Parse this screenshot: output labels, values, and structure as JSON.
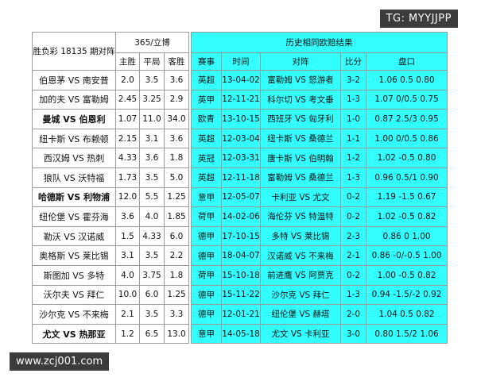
{
  "watermark_top": "TG: MYYJJPP",
  "watermark_bottom": "www.zcj001.com",
  "table": {
    "left_header": "胜负彩 18135 期对阵",
    "odds_header": "365/立博",
    "odds_columns": [
      "主胜",
      "平局",
      "客胜"
    ],
    "history_header": "历史相同欧赔结果",
    "history_columns": [
      "赛事",
      "时间",
      "对阵",
      "比分",
      "盘口"
    ],
    "rows": [
      [
        "伯恩茅 VS 南安普",
        "2.0",
        "3.5",
        "3.6",
        "英超",
        "13-04-02",
        "富勒姆 VS 怒游者",
        "3-2",
        "1.06 0.5 0.80"
      ],
      [
        "加的夫 VS 富勒姆",
        "2.45",
        "3.25",
        "2.9",
        "英甲",
        "12-11-21",
        "科尔切 VS 考文垂",
        "1-3",
        "1.07 0/0.5 0.75"
      ],
      [
        "曼城 VS 伯恩利",
        "1.07",
        "11.0",
        "34.0",
        "欧青",
        "13-10-15",
        "西班牙 VS 匈牙利",
        "1-0",
        "0.87 2.5/3 0.95"
      ],
      [
        "纽卡斯 VS 布赖顿",
        "2.15",
        "3.1",
        "3.6",
        "英超",
        "12-03-04",
        "纽卡斯 VS 桑德兰",
        "1-1",
        "1.00 0/0.5 0.86"
      ],
      [
        "西汉姆 VS 热刺",
        "4.33",
        "3.6",
        "1.8",
        "英冠",
        "12-03-31",
        "唐卡斯 VS 伯明翰",
        "1-2",
        "1.02 -0.5 0.80"
      ],
      [
        "狼队 VS 沃特福",
        "1.73",
        "3.5",
        "5.0",
        "英超",
        "12-11-18",
        "富勒姆 VS 桑德兰",
        "1-3",
        "0.96 0.5/1 0.90"
      ],
      [
        "哈德斯 VS 利物浦",
        "12.0",
        "5.5",
        "1.25",
        "意甲",
        "12-05-07",
        "卡利亚 VS 尤文",
        "0-2",
        "1.19 -1.5 0.67"
      ],
      [
        "纽伦堡 VS 霍芬海",
        "3.6",
        "4.0",
        "1.85",
        "荷甲",
        "14-02-06",
        "海伦芬 VS 特温特",
        "0-2",
        "1.02 -0.5 0.82"
      ],
      [
        "勒沃 VS 汉诺威",
        "1.5",
        "4.33",
        "6.0",
        "德甲",
        "17-10-15",
        "多特 VS 莱比锡",
        "2-3",
        "0.86 0 1.00"
      ],
      [
        "奥格斯 VS 莱比锡",
        "3.1",
        "3.5",
        "2.2",
        "德甲",
        "18-04-07",
        "汉诺威 VS 不来梅",
        "2-1",
        "0.86 -0/-0.5 1.00"
      ],
      [
        "斯图加 VS 多特",
        "4.0",
        "3.75",
        "1.8",
        "荷甲",
        "15-10-18",
        "前进鹰 VS 阿贾克",
        "0-2",
        "1.00 -0.5 0.82"
      ],
      [
        "沃尔夫 VS 拜仁",
        "10.0",
        "6.0",
        "1.25",
        "德甲",
        "15-11-22",
        "沙尔克 VS 拜仁",
        "1-3",
        "0.94 -1.5/-2 0.92"
      ],
      [
        "沙尔克 VS 不来梅",
        "2.1",
        "3.5",
        "3.3",
        "德甲",
        "12-01-21",
        "纽伦堡 VS 赫塔",
        "2-0",
        "1.04 0.5 0.82"
      ],
      [
        "尤文 VS 热那亚",
        "1.2",
        "6.5",
        "13.0",
        "意甲",
        "14-05-18",
        "尤文 VS 卡利亚",
        "3-0",
        "0.80 1.5/2 1.06"
      ]
    ]
  }
}
